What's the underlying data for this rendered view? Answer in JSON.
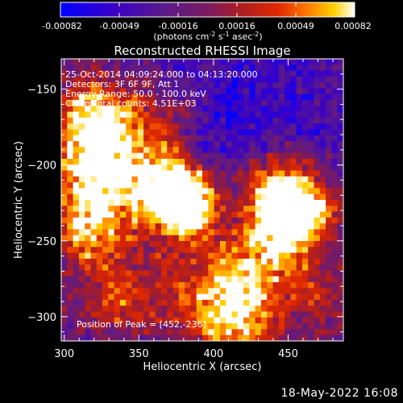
{
  "colorbar": {
    "tick_labels": [
      "-0.00082",
      "-0.00049",
      "-0.00016",
      "0.00016",
      "0.00049",
      "0.00082"
    ],
    "units_prefix": "(photons cm",
    "units_exp1": "-2",
    "units_mid": " s",
    "units_exp2": "-1",
    "units_mid2": " asec",
    "units_exp3": "-2",
    "units_suffix": ")",
    "min": -0.00082,
    "max": 0.00082
  },
  "chart_data": {
    "type": "heatmap",
    "title": "Reconstructed RHESSI Image",
    "xlabel": "Heliocentric X (arcsec)",
    "ylabel": "Heliocentric Y (arcsec)",
    "xlim": [
      298,
      487
    ],
    "ylim": [
      -316,
      -130
    ],
    "xticks": [
      300,
      350,
      400,
      450
    ],
    "yticks": [
      -150,
      -200,
      -250,
      -300
    ],
    "peak": [
      452,
      -236
    ],
    "info": [
      "25-Oct-2014 04:09:24.000 to 04:13:20.000",
      "Detectors: 3F 6F 9F, Att 1",
      "Energy Range: 50.0 - 100.0 keV",
      "Clean     Total counts: 4.51E+03"
    ],
    "peak_label": "Position of Peak = [452,-236]",
    "grid": false
  },
  "footer": {
    "timestamp": "18-May-2022 16:08"
  }
}
